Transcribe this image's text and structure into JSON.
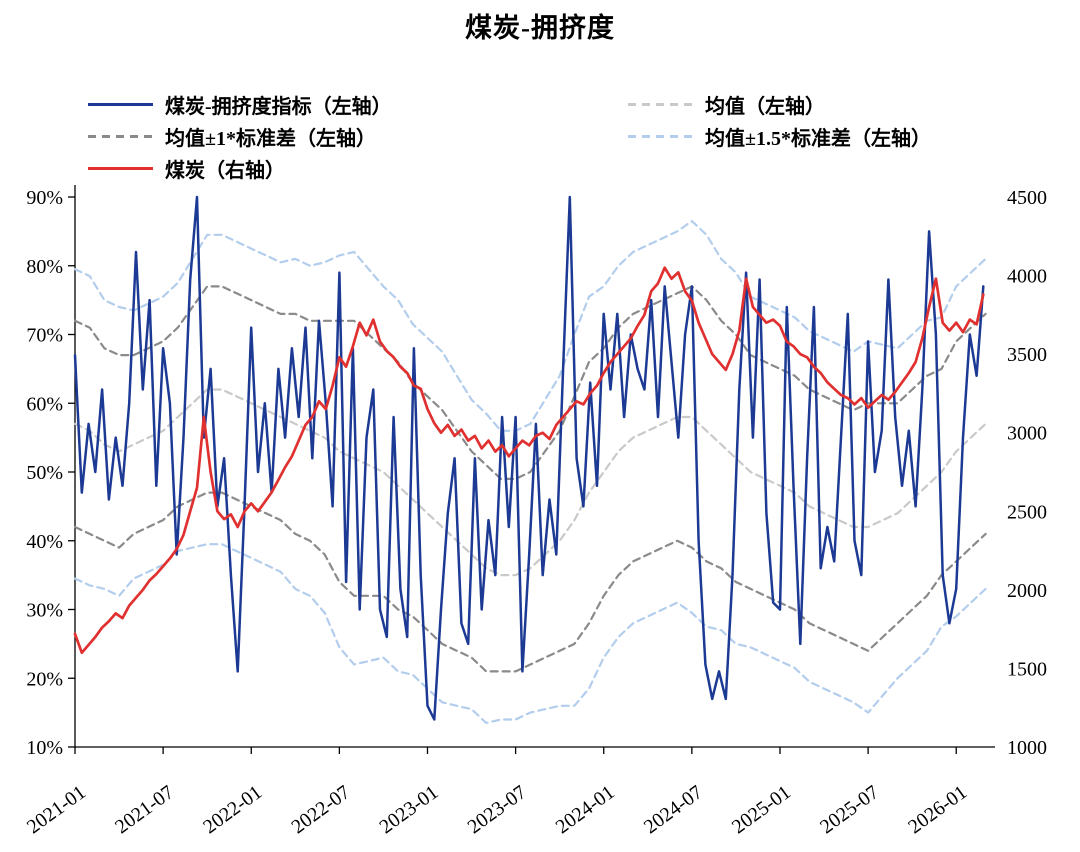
{
  "chart_data": {
    "type": "line",
    "title": "煤炭-拥挤度",
    "x_range": [
      2021.0,
      2026.22
    ],
    "x_tick_values": [
      2021.0,
      2021.5,
      2022.0,
      2022.5,
      2023.0,
      2023.5,
      2024.0,
      2024.5,
      2025.0,
      2025.5,
      2026.0
    ],
    "x_tick_labels": [
      "2021-01",
      "2021-07",
      "2022-01",
      "2022-07",
      "2023-01",
      "2023-07",
      "2024-01",
      "2024-07",
      "2025-01",
      "2025-07",
      "2026-01"
    ],
    "left_axis": {
      "min": 10,
      "max": 90,
      "tick_values": [
        90,
        80,
        70,
        60,
        50,
        40,
        30,
        20,
        10
      ],
      "tick_labels": [
        "90%",
        "80%",
        "70%",
        "60%",
        "50%",
        "40%",
        "30%",
        "20%",
        "10%"
      ]
    },
    "right_axis": {
      "min": 1000,
      "max": 4500,
      "tick_values": [
        4500,
        4000,
        3500,
        3000,
        2500,
        2000,
        1500,
        1000
      ],
      "tick_labels": [
        "4500",
        "4000",
        "3500",
        "3000",
        "2500",
        "2000",
        "1500",
        "1000"
      ]
    },
    "legend_position": "top",
    "grid": false,
    "series": [
      {
        "id": "crowding",
        "name": "煤炭-拥挤度指标（左轴）",
        "axis": "left",
        "style": "solid",
        "color": "#1C3A94",
        "unit": "%",
        "x_start": 2021.0,
        "x_step": 0.0384615,
        "values": [
          67,
          47,
          57,
          50,
          62,
          46,
          55,
          48,
          60,
          82,
          62,
          75,
          48,
          68,
          60,
          38,
          55,
          78,
          90,
          55,
          65,
          45,
          52,
          35,
          21,
          45,
          71,
          50,
          60,
          47,
          65,
          55,
          68,
          58,
          71,
          52,
          72,
          60,
          45,
          79,
          34,
          68,
          30,
          55,
          62,
          30,
          26,
          58,
          33,
          26,
          68,
          35,
          16,
          14,
          30,
          44,
          52,
          28,
          25,
          52,
          30,
          43,
          35,
          58,
          42,
          58,
          21,
          38,
          57,
          35,
          46,
          38,
          65,
          90,
          52,
          45,
          63,
          48,
          73,
          62,
          73,
          58,
          70,
          65,
          62,
          75,
          58,
          77,
          66,
          55,
          70,
          77,
          40,
          22,
          17,
          21,
          17,
          35,
          62,
          79,
          55,
          78,
          44,
          31,
          30,
          74,
          48,
          25,
          52,
          74,
          36,
          42,
          37,
          55,
          73,
          40,
          35,
          69,
          50,
          56,
          78,
          58,
          48,
          56,
          45,
          62,
          85,
          70,
          35,
          28,
          33,
          55,
          70,
          64,
          77
        ]
      },
      {
        "id": "mean",
        "name": "均值（左轴）",
        "axis": "left",
        "style": "dashed",
        "color": "#C9C9C9",
        "derived": "rolling mean of crowding indicator"
      },
      {
        "id": "mean_pm_1sd",
        "name": "均值±1*标准差（左轴）",
        "axis": "left",
        "style": "dashed",
        "color": "#8A8A8A",
        "derived": "mean plus/minus 1 std dev"
      },
      {
        "id": "mean_pm_1p5sd",
        "name": "均值±1.5*标准差（左轴）",
        "axis": "left",
        "style": "dashed",
        "color": "#B3CDED",
        "derived": "mean plus/minus 1.5 std dev"
      },
      {
        "id": "coal",
        "name": "煤炭（右轴）",
        "axis": "right",
        "style": "solid",
        "color": "#E03030",
        "x_start": 2021.0,
        "x_step": 0.0384615,
        "values": [
          1720,
          1600,
          1650,
          1700,
          1760,
          1800,
          1850,
          1820,
          1900,
          1950,
          2000,
          2060,
          2100,
          2150,
          2200,
          2260,
          2350,
          2500,
          2650,
          3100,
          2750,
          2500,
          2450,
          2480,
          2400,
          2500,
          2550,
          2500,
          2560,
          2620,
          2700,
          2780,
          2850,
          2950,
          3050,
          3100,
          3200,
          3150,
          3300,
          3480,
          3420,
          3550,
          3700,
          3620,
          3720,
          3580,
          3520,
          3480,
          3420,
          3380,
          3300,
          3280,
          3150,
          3060,
          3000,
          3050,
          2980,
          3020,
          2950,
          2980,
          2900,
          2950,
          2880,
          2920,
          2850,
          2900,
          2950,
          2920,
          2980,
          3000,
          2960,
          3050,
          3100,
          3150,
          3200,
          3180,
          3250,
          3300,
          3380,
          3450,
          3500,
          3550,
          3600,
          3680,
          3750,
          3900,
          3950,
          4050,
          3980,
          4020,
          3900,
          3840,
          3700,
          3600,
          3500,
          3450,
          3400,
          3500,
          3650,
          3980,
          3800,
          3750,
          3700,
          3720,
          3680,
          3580,
          3550,
          3500,
          3480,
          3420,
          3380,
          3320,
          3280,
          3240,
          3220,
          3180,
          3220,
          3160,
          3200,
          3240,
          3210,
          3260,
          3320,
          3380,
          3450,
          3600,
          3800,
          3980,
          3700,
          3650,
          3700,
          3640,
          3720,
          3690,
          3880
        ]
      }
    ],
    "bands": {
      "x_start": 2021.0,
      "x_step": 0.0833333,
      "mean": [
        57,
        56,
        54,
        53,
        54,
        55,
        56,
        58,
        60,
        62,
        62,
        61,
        60,
        59,
        58,
        57,
        56,
        55,
        53,
        52,
        51,
        50,
        48,
        46,
        44,
        42,
        40,
        38,
        36,
        35,
        35,
        36,
        38,
        40,
        43,
        47,
        50,
        53,
        55,
        56,
        57,
        58,
        58,
        56,
        54,
        52,
        50,
        49,
        48,
        47,
        45,
        44,
        43,
        42,
        42,
        43,
        44,
        46,
        48,
        50,
        53,
        55,
        57
      ],
      "sigma": [
        15,
        15,
        14,
        14,
        13,
        13,
        13,
        13,
        14,
        15,
        15,
        15,
        15,
        15,
        15,
        16,
        16,
        17,
        19,
        20,
        19,
        18,
        18,
        17,
        17,
        17,
        16,
        15,
        15,
        14,
        14,
        14,
        15,
        16,
        18,
        19,
        18,
        18,
        18,
        18,
        18,
        18,
        19,
        19,
        18,
        18,
        17,
        17,
        17,
        17,
        17,
        17,
        17,
        17,
        18,
        17,
        16,
        16,
        16,
        15,
        16,
        16,
        16
      ]
    }
  }
}
